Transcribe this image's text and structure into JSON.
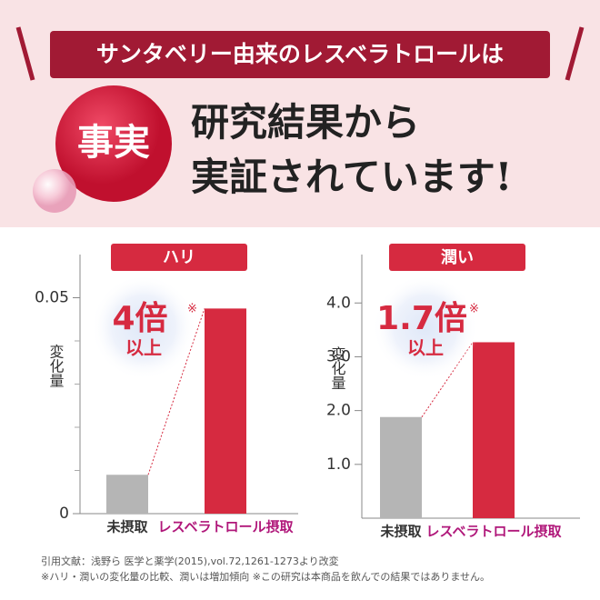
{
  "header": {
    "banner": "サンタベリー由来のレスベラトロールは",
    "badge": "事実",
    "line1": "研究結果から",
    "line2": "実証されています!"
  },
  "chart_data": [
    {
      "type": "bar",
      "title": "ハリ",
      "y_label": "変化量",
      "categories": [
        "未摂取",
        "レスベラトロール摂取"
      ],
      "values": [
        0.009,
        0.0475
      ],
      "colors": [
        "#b5b5b5",
        "#d62a40"
      ],
      "category_colors": [
        "#333333",
        "#b0177a"
      ],
      "ylim": [
        0,
        0.06
      ],
      "yticks": [
        0,
        0.05
      ],
      "minor_yticks": [
        0.01,
        0.02,
        0.03,
        0.04
      ],
      "callout": {
        "main": "4倍",
        "mark": "※",
        "sub": "以上"
      }
    },
    {
      "type": "bar",
      "title": "潤い",
      "y_label": "変化量",
      "categories": [
        "未摂取",
        "レスベラトロール摂取"
      ],
      "values": [
        1.88,
        3.27
      ],
      "colors": [
        "#b5b5b5",
        "#d62a40"
      ],
      "category_colors": [
        "#333333",
        "#b0177a"
      ],
      "ylim": [
        0,
        4.9
      ],
      "yticks": [
        {
          "value": 1,
          "label": "1.0"
        },
        {
          "value": 2,
          "label": "2.0"
        },
        {
          "value": 3,
          "label": "3.0"
        },
        {
          "value": 4,
          "label": "4.0"
        }
      ],
      "minor_yticks": [],
      "callout": {
        "main": "1.7倍",
        "mark": "※",
        "sub": "以上"
      }
    }
  ],
  "footnotes": [
    "引用文献：浅野ら 医学と薬学(2015),vol.72,1261-1273より改変",
    "※ハリ・潤いの変化量の比較、潤いは増加傾向 ※この研究は本商品を飲んでの結果ではありません。"
  ]
}
